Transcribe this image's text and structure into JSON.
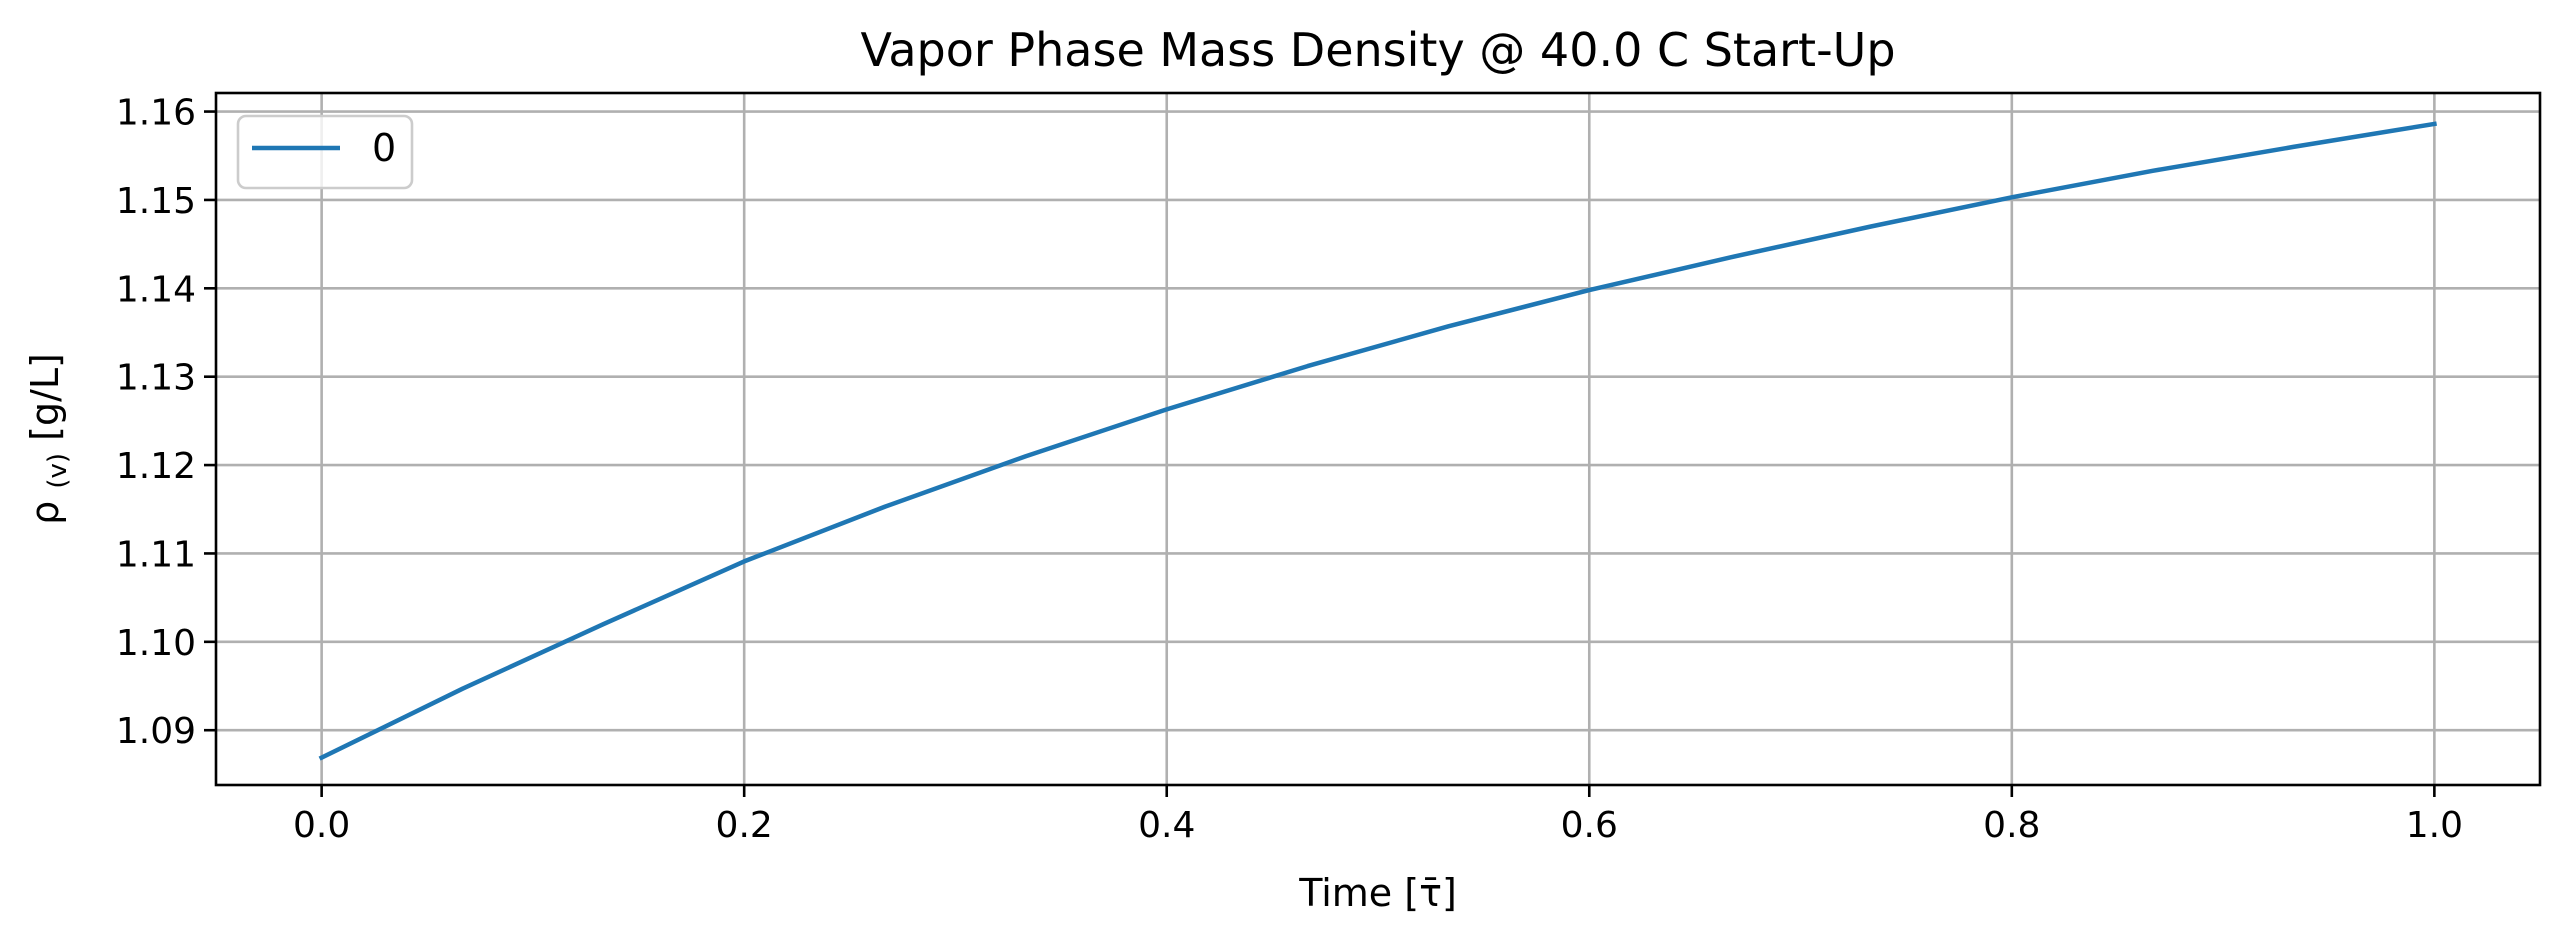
{
  "chart_data": {
    "type": "line",
    "title": "Vapor Phase Mass Density @ 40.0 C Start-Up",
    "xlabel": "Time [τ̄]",
    "ylabel_symbol": "ρ",
    "ylabel_subscript": "(v)",
    "ylabel_units": "[g/L]",
    "xlim": [
      -0.05,
      1.05
    ],
    "ylim": [
      1.0838,
      1.1621
    ],
    "xticks": [
      0.0,
      0.2,
      0.4,
      0.6,
      0.8,
      1.0
    ],
    "xtick_labels": [
      "0.0",
      "0.2",
      "0.4",
      "0.6",
      "0.8",
      "1.0"
    ],
    "yticks": [
      1.09,
      1.1,
      1.11,
      1.12,
      1.13,
      1.14,
      1.15,
      1.16
    ],
    "ytick_labels": [
      "1.09",
      "1.10",
      "1.11",
      "1.12",
      "1.13",
      "1.14",
      "1.15",
      "1.16"
    ],
    "grid": true,
    "legend_position": "top-left",
    "series": [
      {
        "name": "0",
        "color": "#1f77b4",
        "x": [
          0.0,
          0.0667,
          0.1333,
          0.2,
          0.2667,
          0.3333,
          0.4,
          0.4667,
          0.5333,
          0.6,
          0.6667,
          0.7333,
          0.8,
          0.8667,
          0.9333,
          1.0
        ],
        "y": [
          1.0869,
          1.0947,
          1.102,
          1.1091,
          1.1153,
          1.121,
          1.1263,
          1.1312,
          1.1357,
          1.1398,
          1.1435,
          1.147,
          1.1503,
          1.1533,
          1.156,
          1.1586
        ]
      }
    ]
  }
}
